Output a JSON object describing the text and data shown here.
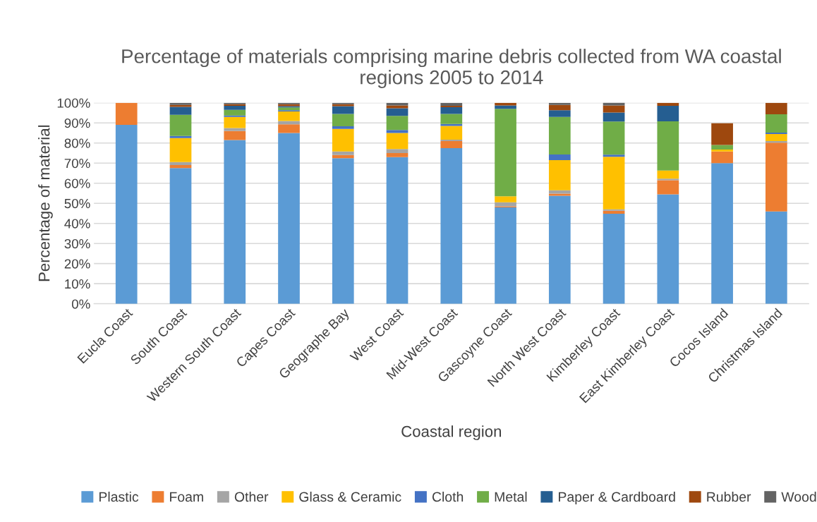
{
  "chart_data": {
    "type": "bar",
    "stacked": true,
    "title": "Percentage of materials comprising marine debris collected from WA coastal regions 2005 to 2014",
    "xlabel": "Coastal region",
    "ylabel": "Percentage of material",
    "categories": [
      "Eucla Coast",
      "South Coast",
      "Western South Coast",
      "Capes Coast",
      "Geographe Bay",
      "West Coast",
      "Mid-West Coast",
      "Gascoyne Coast",
      "North West Coast",
      "Kimberley Coast",
      "East Kimberley Coast",
      "Cocos Island",
      "Christmas Island"
    ],
    "series": [
      {
        "name": "Plastic",
        "color": "#5b9bd5",
        "values": [
          89,
          67.5,
          81.5,
          85,
          72.5,
          73,
          77.5,
          48,
          53.8,
          44.8,
          54.5,
          70,
          46
        ]
      },
      {
        "name": "Foam",
        "color": "#ed7d31",
        "values": [
          11,
          1.5,
          4.5,
          4.3,
          1.5,
          2,
          3.5,
          0.5,
          1,
          1.5,
          7,
          5.8,
          34.2
        ]
      },
      {
        "name": "Other",
        "color": "#a5a5a5",
        "values": [
          0,
          1.5,
          1.5,
          1.7,
          1.8,
          2,
          0.7,
          2,
          1.7,
          0.7,
          0.8,
          null,
          0.8
        ]
      },
      {
        "name": "Glass & Ceramic",
        "color": "#ffc000",
        "values": [
          0,
          12,
          5.5,
          4.7,
          11.2,
          8,
          6.8,
          3,
          15,
          26.2,
          4,
          1,
          3.5
        ]
      },
      {
        "name": "Cloth",
        "color": "#4472c4",
        "values": [
          0,
          1,
          0.7,
          0.6,
          1.3,
          1.5,
          1,
          0,
          2.8,
          1,
          0,
          0,
          0.7
        ]
      },
      {
        "name": "Metal",
        "color": "#70ad47",
        "values": [
          0,
          10.5,
          2.8,
          1.4,
          6.2,
          7,
          5,
          43.5,
          18.7,
          16.5,
          24.5,
          2.2,
          9.1
        ]
      },
      {
        "name": "Paper & Cardboard",
        "color": "#255e91",
        "values": [
          0,
          4,
          2,
          0.6,
          3.8,
          3.8,
          3.3,
          1.7,
          3.3,
          4.5,
          7.7,
          0,
          0
        ]
      },
      {
        "name": "Rubber",
        "color": "#9e480e",
        "values": [
          0,
          1,
          0.8,
          1,
          1,
          1.4,
          0.7,
          1.3,
          2.7,
          3.5,
          1.5,
          10.8,
          5.7
        ]
      },
      {
        "name": "Wood",
        "color": "#636363",
        "values": [
          0,
          1,
          0.7,
          0.7,
          0.7,
          1.3,
          1.5,
          0,
          1,
          1.5,
          0,
          0,
          0
        ]
      }
    ],
    "ylim": [
      0,
      100
    ],
    "yticks": [
      {
        "value": 0,
        "label": "0%"
      },
      {
        "value": 10,
        "label": "10%"
      },
      {
        "value": 20,
        "label": "20%"
      },
      {
        "value": 30,
        "label": "30%"
      },
      {
        "value": 40,
        "label": "40%"
      },
      {
        "value": 50,
        "label": "50%"
      },
      {
        "value": 60,
        "label": "60%"
      },
      {
        "value": 70,
        "label": "70%"
      },
      {
        "value": 80,
        "label": "80%"
      },
      {
        "value": 90,
        "label": "90%"
      },
      {
        "value": 100,
        "label": "100%"
      }
    ],
    "grid": "y",
    "legend": "bottom"
  }
}
